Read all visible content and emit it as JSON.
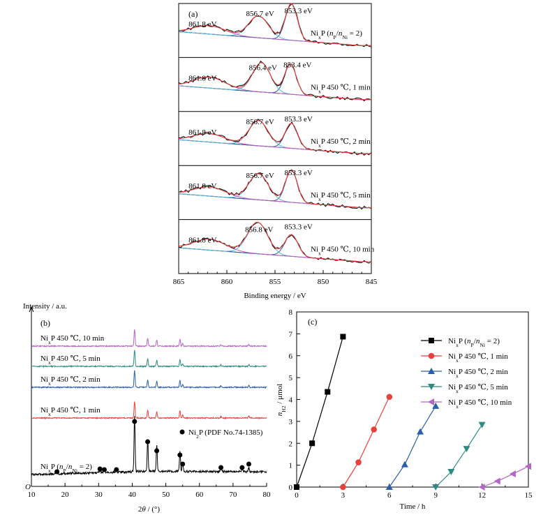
{
  "chart_data": [
    {
      "id": "a",
      "panel_label": "(a)",
      "type": "line",
      "xlabel": "Binding energy / eV",
      "xlim": [
        865,
        845
      ],
      "xticks": [
        "865",
        "860",
        "855",
        "850",
        "845"
      ],
      "rows": [
        {
          "sample_label": "NixP (nP/nNi = 2)",
          "label_parts": [
            "Ni",
            "x",
            "P (",
            "n",
            "P",
            "/",
            "n",
            "Ni",
            " = 2)"
          ],
          "peaks": [
            {
              "position": 861.8,
              "label": "861.8 eV"
            },
            {
              "position": 856.7,
              "label": "856.7 eV"
            },
            {
              "position": 853.3,
              "label": "853.3 eV"
            }
          ],
          "fit_components": [
            {
              "center": 853.3,
              "height": 0.88,
              "width": 0.85
            },
            {
              "center": 856.7,
              "height": 0.52,
              "width": 1.45
            },
            {
              "center": 861.8,
              "height": 0.2,
              "width": 2.3
            }
          ]
        },
        {
          "sample_label": "NixP 450 ℃, 1 min",
          "label_parts": [
            "Ni",
            "x",
            "P 450 ℃, 1 min"
          ],
          "peaks": [
            {
              "position": 861.8,
              "label": "861.8 eV"
            },
            {
              "position": 856.4,
              "label": "856.4 eV"
            },
            {
              "position": 853.4,
              "label": "853.4 eV"
            }
          ],
          "fit_components": [
            {
              "center": 853.4,
              "height": 0.72,
              "width": 0.85
            },
            {
              "center": 856.4,
              "height": 0.7,
              "width": 1.3
            },
            {
              "center": 861.8,
              "height": 0.26,
              "width": 2.3
            }
          ]
        },
        {
          "sample_label": "NixP 450 ℃, 2 min",
          "label_parts": [
            "Ni",
            "x",
            "P 450 ℃, 2 min"
          ],
          "peaks": [
            {
              "position": 861.8,
              "label": "861.8 eV"
            },
            {
              "position": 856.7,
              "label": "856.7 eV"
            },
            {
              "position": 853.3,
              "label": "853.3 eV"
            }
          ],
          "fit_components": [
            {
              "center": 853.3,
              "height": 0.6,
              "width": 0.9
            },
            {
              "center": 856.7,
              "height": 0.6,
              "width": 1.4
            },
            {
              "center": 861.8,
              "height": 0.2,
              "width": 2.3
            }
          ]
        },
        {
          "sample_label": "NixP 450 ℃, 5 min",
          "label_parts": [
            "Ni",
            "x",
            "P 450 ℃, 5 min"
          ],
          "peaks": [
            {
              "position": 861.8,
              "label": "861.8 eV"
            },
            {
              "position": 856.7,
              "label": "856.7 eV"
            },
            {
              "position": 853.3,
              "label": "853.3 eV"
            }
          ],
          "fit_components": [
            {
              "center": 853.3,
              "height": 0.78,
              "width": 0.85
            },
            {
              "center": 856.7,
              "height": 0.62,
              "width": 1.4
            },
            {
              "center": 861.8,
              "height": 0.22,
              "width": 2.3
            }
          ]
        },
        {
          "sample_label": "NixP 450 ℃, 10 min",
          "label_parts": [
            "Ni",
            "x",
            "P 450 ℃, 10 min"
          ],
          "peaks": [
            {
              "position": 861.8,
              "label": "861.8 eV"
            },
            {
              "position": 856.8,
              "label": "856.8 eV"
            },
            {
              "position": 853.3,
              "label": "853.3 eV"
            }
          ],
          "fit_components": [
            {
              "center": 853.3,
              "height": 0.52,
              "width": 0.95
            },
            {
              "center": 856.8,
              "height": 0.75,
              "width": 1.45
            },
            {
              "center": 861.8,
              "height": 0.26,
              "width": 2.3
            }
          ]
        }
      ],
      "colors": {
        "experimental": "#000000",
        "envelope": "#e8413c",
        "component_main": "#2b5fa8",
        "component_secondary": "#58b9d6",
        "component_satellite": "#c45fc4",
        "background": "#25266e"
      }
    },
    {
      "id": "b",
      "panel_label": "(b)",
      "type": "line",
      "xlabel": "2θ / (°)",
      "xlabel_parts": [
        "2",
        "θ",
        " / (°)"
      ],
      "ylabel": "Intensity / a.u.",
      "origin_label": "O",
      "xlim": [
        10,
        80
      ],
      "xticks": [
        "10",
        "20",
        "30",
        "40",
        "50",
        "60",
        "70",
        "80"
      ],
      "reference_legend": "Ni2P (PDF No.74-1385)",
      "reference_legend_parts": [
        "Ni",
        "2",
        "P (PDF No.74-1385)"
      ],
      "reference_peaks_2theta": [
        17.6,
        30.4,
        31.7,
        35.3,
        40.7,
        44.6,
        47.3,
        54.2,
        55.0,
        66.4,
        72.7,
        74.7
      ],
      "series": [
        {
          "name": "NixP (nP/nNi = 2)",
          "label_parts": [
            "Ni",
            "x",
            "P (",
            "n",
            "P",
            "/",
            "n",
            "Ni",
            " = 2)"
          ],
          "color": "#000000"
        },
        {
          "name": "NixP 450 ℃, 1 min",
          "label_parts": [
            "Ni",
            "x",
            "P 450 ℃, 1 min"
          ],
          "color": "#e8413c"
        },
        {
          "name": "NixP 450 ℃, 2 min",
          "label_parts": [
            "Ni",
            "x",
            "P 450 ℃, 2 min"
          ],
          "color": "#2b5fa8"
        },
        {
          "name": "NixP 450 ℃, 5 min",
          "label_parts": [
            "Ni",
            "x",
            "P 450 ℃, 5 min"
          ],
          "color": "#2e8b82"
        },
        {
          "name": "NixP 450 ℃, 10 min",
          "label_parts": [
            "Ni",
            "x",
            "P 450 ℃, 10 min"
          ],
          "color": "#b466c4"
        }
      ],
      "diffraction_peaks_2theta": [
        40.7,
        44.6,
        47.3,
        54.2,
        55.0,
        66.4,
        74.7
      ]
    },
    {
      "id": "c",
      "panel_label": "(c)",
      "type": "line",
      "xlabel": "Time / h",
      "ylabel": "nH2 / μmol",
      "ylabel_parts": [
        "n",
        "H",
        "2",
        " / μmol"
      ],
      "xlim": [
        0,
        15
      ],
      "ylim": [
        0,
        8
      ],
      "xticks": [
        "0",
        "3",
        "6",
        "9",
        "12",
        "15"
      ],
      "yticks": [
        "0",
        "1",
        "2",
        "3",
        "4",
        "5",
        "6",
        "7",
        "8"
      ],
      "legend_position": "top-right",
      "series": [
        {
          "name": "NixP (nP/nNi = 2)",
          "label_parts": [
            "Ni",
            "x",
            "P (",
            "n",
            "P",
            "/",
            "n",
            "Ni",
            " = 2)"
          ],
          "color": "#000000",
          "marker": "square",
          "x": [
            0,
            1,
            2,
            3
          ],
          "y": [
            0,
            2.0,
            4.35,
            6.87
          ]
        },
        {
          "name": "NixP 450 ℃, 1 min",
          "label_parts": [
            "Ni",
            "x",
            "P 450 ℃, 1 min"
          ],
          "color": "#e8413c",
          "marker": "circle",
          "x": [
            3,
            4,
            5,
            6
          ],
          "y": [
            0,
            1.13,
            2.63,
            4.12
          ]
        },
        {
          "name": "NixP 450 ℃, 2 min",
          "label_parts": [
            "Ni",
            "x",
            "P 450 ℃, 2 min"
          ],
          "color": "#2b5fa8",
          "marker": "triangle-up",
          "x": [
            6,
            7,
            8,
            9
          ],
          "y": [
            0,
            1.03,
            2.53,
            3.7
          ]
        },
        {
          "name": "NixP 450 ℃, 5 min",
          "label_parts": [
            "Ni",
            "x",
            "P 450 ℃, 5 min"
          ],
          "color": "#2e8b82",
          "marker": "triangle-down",
          "x": [
            9,
            10,
            11,
            12
          ],
          "y": [
            0,
            0.7,
            1.75,
            2.85
          ]
        },
        {
          "name": "NixP 450 ℃, 10 min",
          "label_parts": [
            "Ni",
            "x",
            "P 450 ℃, 10 min"
          ],
          "color": "#b466c4",
          "marker": "triangle-left",
          "x": [
            12,
            13,
            14,
            15
          ],
          "y": [
            0,
            0.27,
            0.6,
            0.95
          ]
        }
      ]
    }
  ]
}
